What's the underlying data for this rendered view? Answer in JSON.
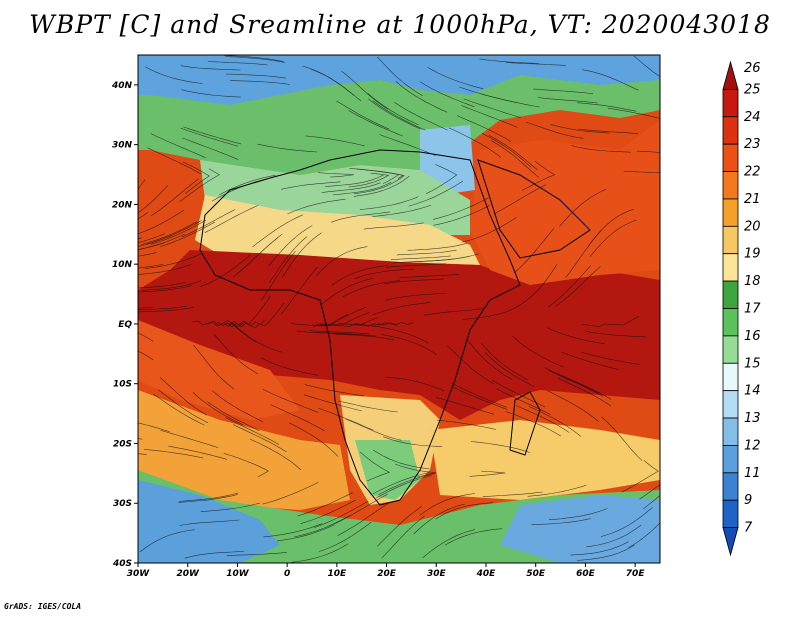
{
  "title": "WBPT [C] and Sreamline at 1000hPa, VT: 2020043018",
  "credit": "GrADS: IGES/COLA",
  "map": {
    "lat_labels": [
      "40N",
      "30N",
      "20N",
      "10N",
      "EQ",
      "10S",
      "20S",
      "30S",
      "40S"
    ],
    "lon_labels": [
      "30W",
      "20W",
      "10W",
      "0",
      "10E",
      "20E",
      "30E",
      "40E",
      "50E",
      "60E",
      "70E"
    ],
    "lat_values": [
      40,
      30,
      20,
      10,
      0,
      -10,
      -20,
      -30,
      -40
    ],
    "lon_values": [
      -30,
      -20,
      -10,
      0,
      10,
      20,
      30,
      40,
      50,
      60,
      70
    ],
    "lon_range": [
      -30,
      75
    ],
    "lat_range": [
      -40,
      45
    ]
  },
  "colorbar": {
    "labels": [
      "26",
      "25",
      "24",
      "23",
      "22",
      "21",
      "20",
      "19",
      "18",
      "17",
      "16",
      "15",
      "14",
      "13",
      "12",
      "11",
      "9",
      "7"
    ],
    "colors": [
      "#a50f0f",
      "#c8190f",
      "#dc320f",
      "#eb5014",
      "#f5781e",
      "#f5a028",
      "#f5c864",
      "#fae696",
      "#3ca53c",
      "#5ac35a",
      "#96dc96",
      "#e6fafa",
      "#b4dcf5",
      "#82bee6",
      "#5aa0dc",
      "#3c82d2",
      "#1e64c8",
      "#144bb4"
    ]
  }
}
